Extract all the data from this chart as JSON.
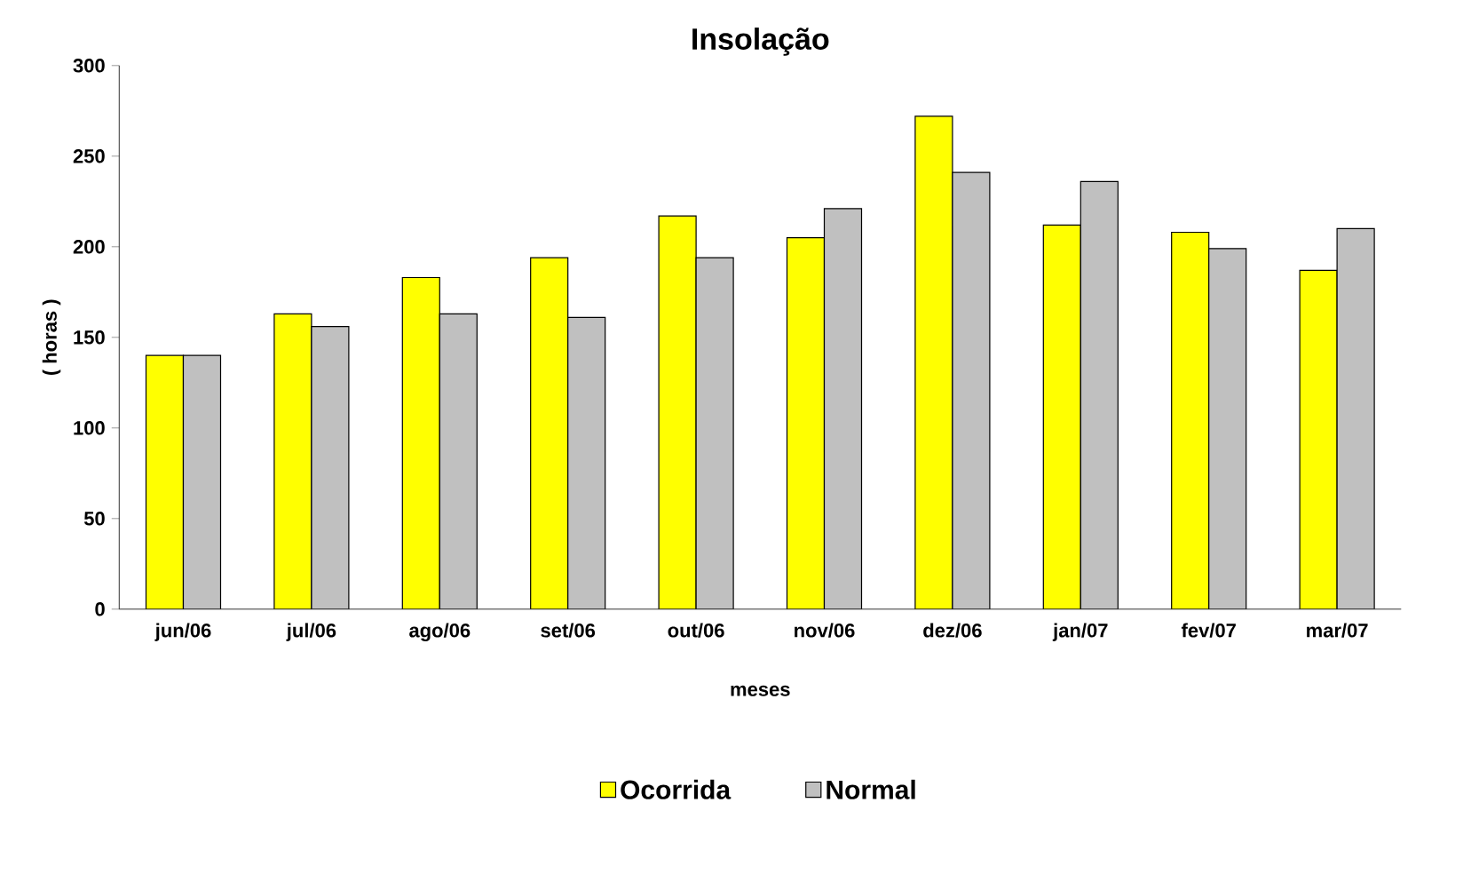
{
  "chart_data": {
    "type": "bar",
    "title": "Insolação",
    "xlabel": "meses",
    "ylabel": "( horas )",
    "categories": [
      "jun/06",
      "jul/06",
      "ago/06",
      "set/06",
      "out/06",
      "nov/06",
      "dez/06",
      "jan/07",
      "fev/07",
      "mar/07"
    ],
    "series": [
      {
        "name": "Ocorrida",
        "color": "#ffff00",
        "values": [
          140,
          163,
          183,
          194,
          217,
          205,
          272,
          212,
          208,
          187
        ]
      },
      {
        "name": "Normal",
        "color": "#c0c0c0",
        "values": [
          140,
          156,
          163,
          161,
          194,
          221,
          241,
          236,
          199,
          210
        ]
      }
    ],
    "ylim": [
      0,
      300
    ],
    "yticks": [
      0,
      50,
      100,
      150,
      200,
      250,
      300
    ],
    "grid": false,
    "legend": "bottom"
  }
}
